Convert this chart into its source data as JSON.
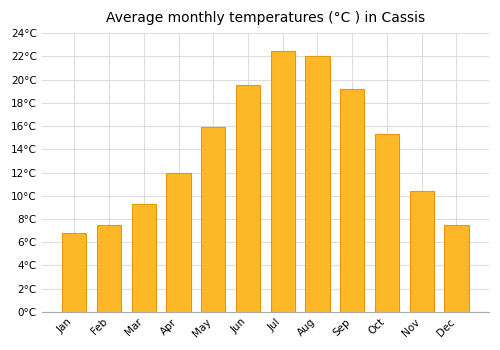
{
  "title": "Average monthly temperatures (°C ) in Cassis",
  "months": [
    "Jan",
    "Feb",
    "Mar",
    "Apr",
    "May",
    "Jun",
    "Jul",
    "Aug",
    "Sep",
    "Oct",
    "Nov",
    "Dec"
  ],
  "temperatures": [
    6.8,
    7.5,
    9.3,
    12.0,
    15.9,
    19.5,
    22.5,
    22.0,
    19.2,
    15.3,
    10.4,
    7.5
  ],
  "bar_color_main": "#FDB827",
  "bar_color_edge": "#E8960A",
  "background_color": "#ffffff",
  "plot_bg_color": "#ffffff",
  "grid_color": "#dddddd",
  "title_fontsize": 10,
  "tick_fontsize": 7.5,
  "ylim": [
    0,
    24
  ],
  "yticks": [
    0,
    2,
    4,
    6,
    8,
    10,
    12,
    14,
    16,
    18,
    20,
    22,
    24
  ]
}
